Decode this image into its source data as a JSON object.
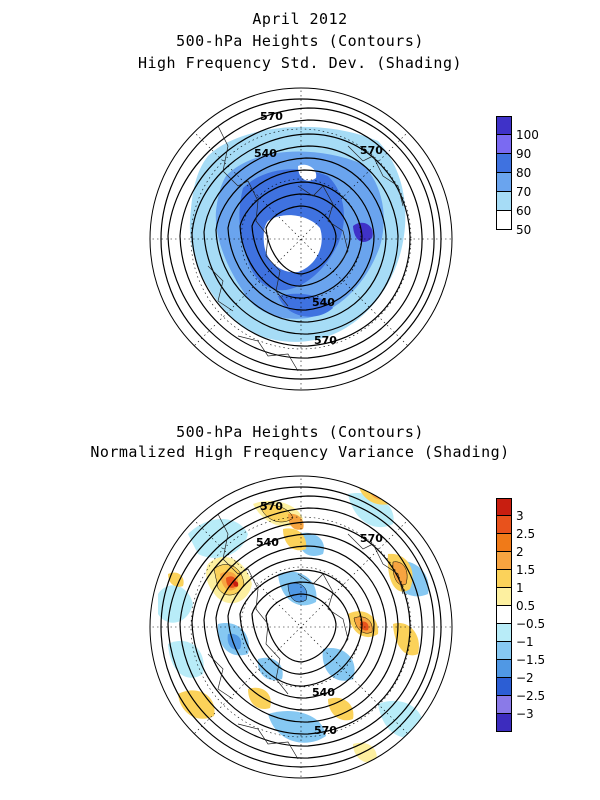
{
  "panel1": {
    "title_line1": "April 2012",
    "title_line2": "500-hPa Heights (Contours)",
    "title_line3": "High Frequency Std. Dev. (Shading)",
    "contour_labels": [
      "570",
      "540",
      "570",
      "540",
      "570"
    ],
    "colorbar": {
      "labels": [
        "100",
        "90",
        "80",
        "70",
        "60",
        "50"
      ],
      "colors": [
        "#3f32c8",
        "#7a6af2",
        "#3f72e0",
        "#6aa4ee",
        "#a6dcf6",
        "#ffffff"
      ]
    }
  },
  "panel2": {
    "title_line1": "500-hPa Heights (Contours)",
    "title_line2": "Normalized High Frequency Variance (Shading)",
    "contour_labels": [
      "570",
      "540",
      "570",
      "540",
      "570"
    ],
    "colorbar": {
      "labels": [
        "3",
        "2.5",
        "2",
        "1.5",
        "1",
        "0.5",
        "−0.5",
        "−1",
        "−1.5",
        "−2",
        "−2.5",
        "−3"
      ],
      "colors": [
        "#c81e10",
        "#e8521c",
        "#f07a18",
        "#f7a440",
        "#fbd25a",
        "#fdf0a0",
        "#ffffff",
        "#b8ecf8",
        "#86c8f2",
        "#5098e4",
        "#2c5ed4",
        "#8a7ae8",
        "#3c2cbe"
      ]
    }
  }
}
